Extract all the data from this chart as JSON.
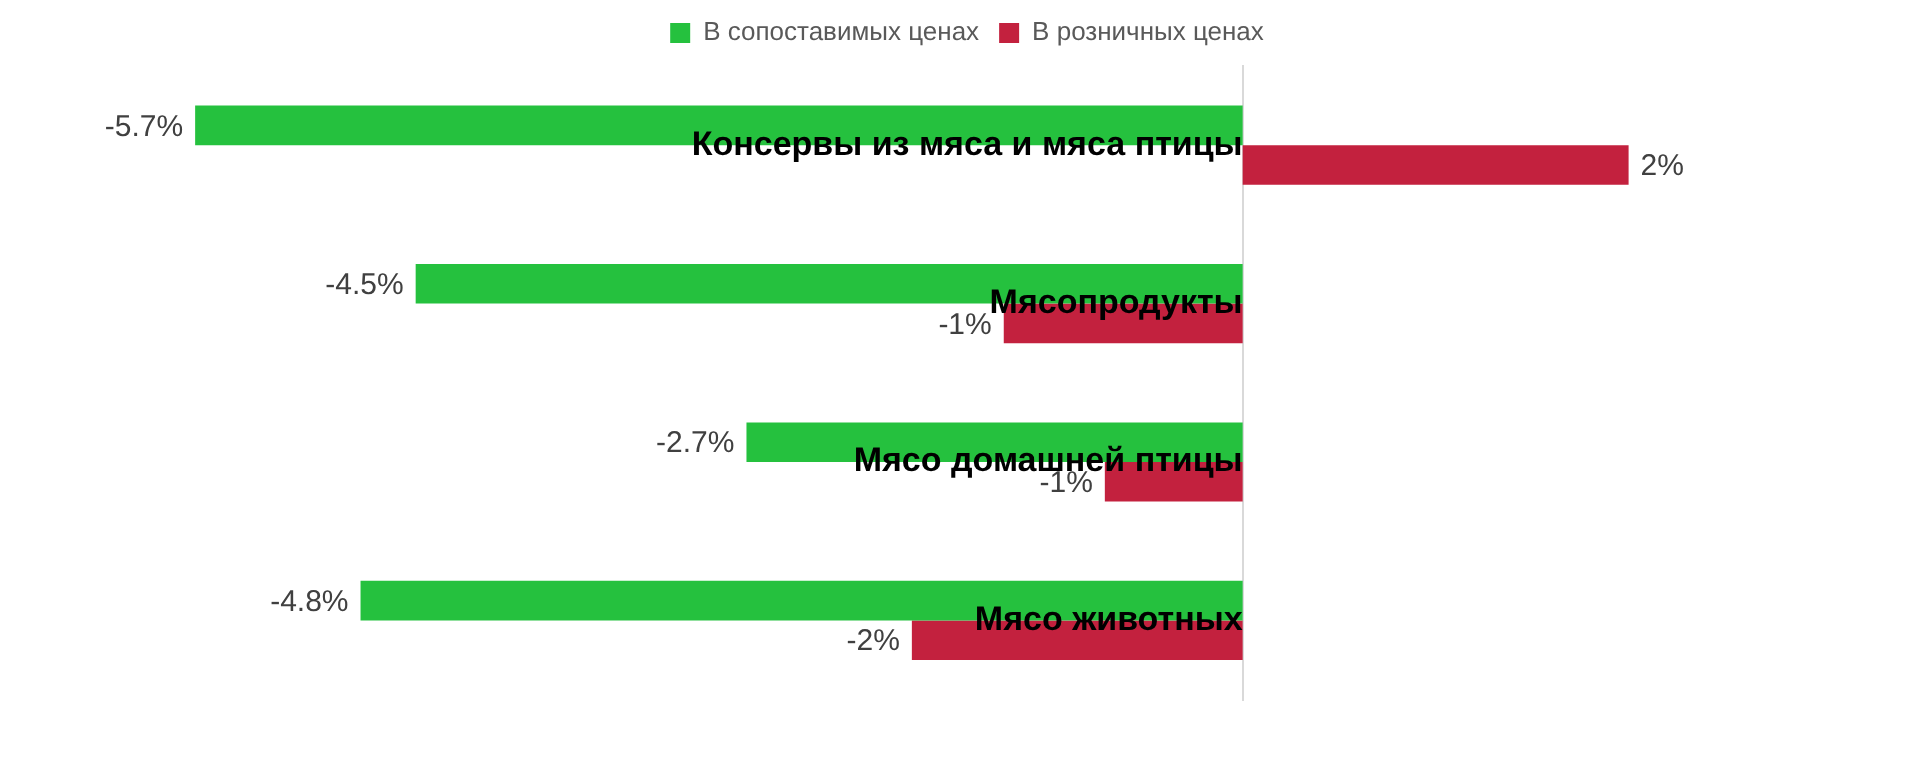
{
  "chart_data": {
    "type": "bar",
    "orientation": "horizontal",
    "categories": [
      "Консервы из мяса и мяса птицы",
      "Мясопродукты",
      "Мясо домашней птицы",
      "Мясо животных"
    ],
    "series": [
      {
        "name": "В сопоставимых ценах",
        "color": "#25c13e",
        "values": [
          -5.7,
          -4.5,
          -2.7,
          -4.8
        ],
        "value_labels": [
          "-5.7%",
          "-4.5%",
          "-2.7%",
          "-4.8%"
        ]
      },
      {
        "name": "В розничных ценах",
        "color": "#c3213e",
        "values": [
          2.1,
          -1.3,
          -0.75,
          -1.8
        ],
        "value_labels": [
          "2%",
          "-1%",
          "-1%",
          "-2%"
        ]
      }
    ],
    "legend": "top",
    "grid": false,
    "tick_labels": "y"
  }
}
